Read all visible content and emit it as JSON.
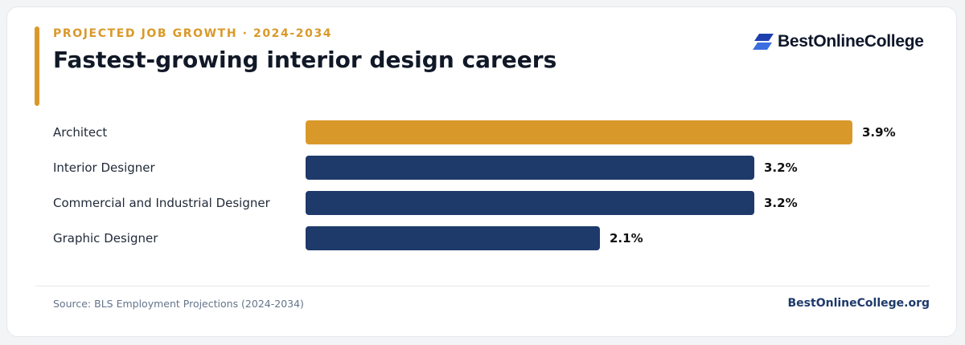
{
  "header": {
    "eyebrow": "PROJECTED JOB GROWTH · 2024-2034",
    "title": "Fastest-growing interior design careers"
  },
  "brand": {
    "name": "BestOnlineCollege",
    "logo_icon": "stacked-parallelogram-logo-icon",
    "color": "#1e40af"
  },
  "colors": {
    "highlight": "#d9992a",
    "primary": "#1e3a6b"
  },
  "chart_data": {
    "type": "bar",
    "orientation": "horizontal",
    "categories": [
      "Architect",
      "Interior Designer",
      "Commercial and Industrial Designer",
      "Graphic Designer"
    ],
    "values": [
      3.9,
      3.2,
      3.2,
      2.1
    ],
    "value_labels": [
      "3.9%",
      "3.2%",
      "3.2%",
      "2.1%"
    ],
    "highlight_index": 0,
    "xlim": [
      0,
      3.9
    ],
    "grid": false,
    "title": "Fastest-growing interior design careers"
  },
  "footer": {
    "source": "Source: BLS Employment Projections (2024-2034)",
    "site": "BestOnlineCollege.org"
  }
}
